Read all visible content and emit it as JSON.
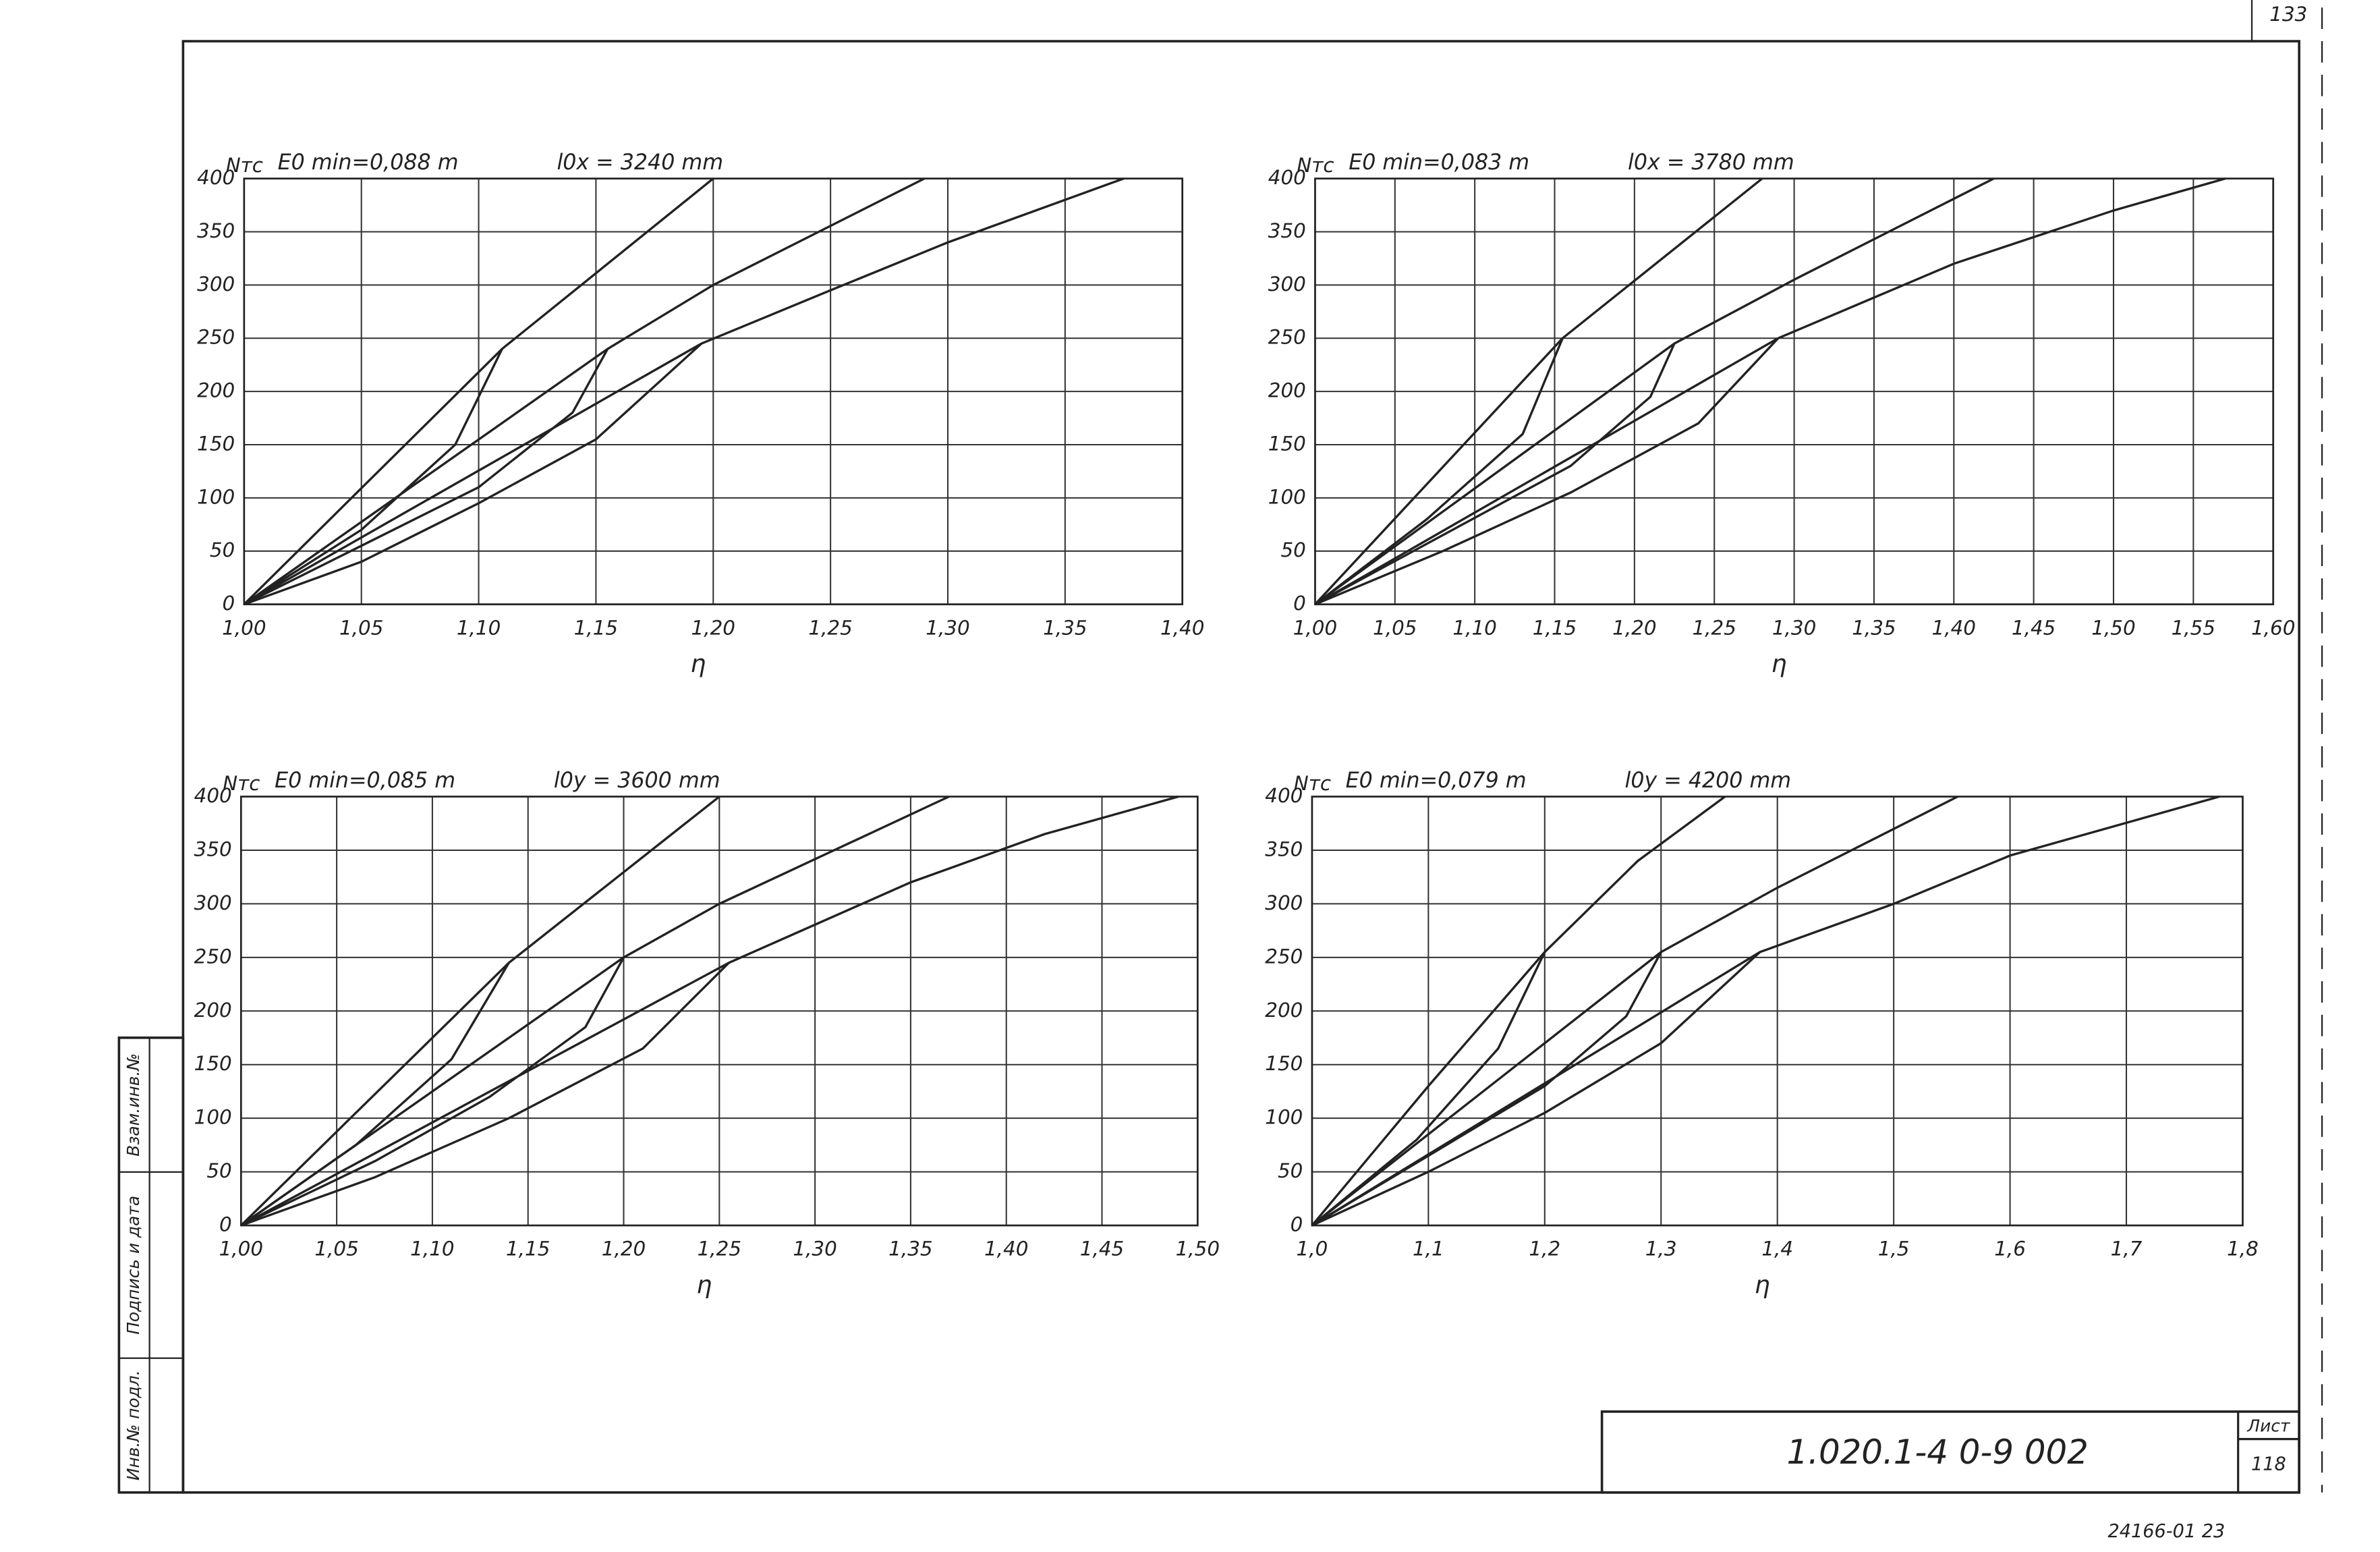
{
  "page_number": "133",
  "chart_data": [
    {
      "type": "line",
      "ylabel": "Nтс",
      "title": "E0 min=0,088 m",
      "subtitle": "l0x = 3240 mm",
      "xlabel": "η",
      "grid": true,
      "xlim": [
        1,
        1.4
      ],
      "ylim": [
        0,
        400
      ],
      "xticks": [
        {
          "value": 1,
          "label": "1,00"
        },
        {
          "value": 1.05,
          "label": "1,05"
        },
        {
          "value": 1.1,
          "label": "1,10"
        },
        {
          "value": 1.15,
          "label": "1,15"
        },
        {
          "value": 1.2,
          "label": "1,20"
        },
        {
          "value": 1.25,
          "label": "1,25"
        },
        {
          "value": 1.3,
          "label": "1,30"
        },
        {
          "value": 1.35,
          "label": "1,35"
        },
        {
          "value": 1.4,
          "label": "1,40"
        }
      ],
      "yticks": [
        0,
        50,
        100,
        150,
        200,
        250,
        300,
        350,
        400
      ],
      "series": [
        {
          "color": "#222",
          "x": [
            1,
            1.11,
            1.2
          ],
          "values": [
            0,
            240,
            400
          ]
        },
        {
          "color": "#222",
          "x": [
            1,
            1.05,
            1.09,
            1.11
          ],
          "values": [
            0,
            70,
            150,
            240
          ]
        },
        {
          "color": "#222",
          "x": [
            1,
            1.155,
            1.2,
            1.29
          ],
          "values": [
            0,
            240,
            300,
            400
          ]
        },
        {
          "color": "#222",
          "x": [
            1,
            1.05,
            1.1,
            1.14,
            1.155
          ],
          "values": [
            0,
            55,
            110,
            180,
            240
          ]
        },
        {
          "color": "#222",
          "x": [
            1,
            1.195,
            1.25,
            1.3,
            1.375
          ],
          "values": [
            0,
            245,
            295,
            340,
            400
          ]
        },
        {
          "color": "#222",
          "x": [
            1,
            1.05,
            1.1,
            1.15,
            1.195
          ],
          "values": [
            0,
            40,
            95,
            155,
            245
          ]
        }
      ]
    },
    {
      "type": "line",
      "ylabel": "Nтс",
      "title": "E0 min=0,083 m",
      "subtitle": "l0x = 3780 mm",
      "xlabel": "η",
      "grid": true,
      "xlim": [
        1,
        1.6
      ],
      "ylim": [
        0,
        400
      ],
      "xticks": [
        {
          "value": 1,
          "label": "1,00"
        },
        {
          "value": 1.05,
          "label": "1,05"
        },
        {
          "value": 1.1,
          "label": "1,10"
        },
        {
          "value": 1.15,
          "label": "1,15"
        },
        {
          "value": 1.2,
          "label": "1,20"
        },
        {
          "value": 1.25,
          "label": "1,25"
        },
        {
          "value": 1.3,
          "label": "1,30"
        },
        {
          "value": 1.35,
          "label": "1,35"
        },
        {
          "value": 1.4,
          "label": "1,40"
        },
        {
          "value": 1.45,
          "label": "1,45"
        },
        {
          "value": 1.5,
          "label": "1,50"
        },
        {
          "value": 1.55,
          "label": "1,55"
        },
        {
          "value": 1.6,
          "label": "1,60"
        }
      ],
      "yticks": [
        0,
        50,
        100,
        150,
        200,
        250,
        300,
        350,
        400
      ],
      "series": [
        {
          "color": "#222",
          "x": [
            1,
            1.155,
            1.28
          ],
          "values": [
            0,
            250,
            400
          ]
        },
        {
          "color": "#222",
          "x": [
            1,
            1.07,
            1.13,
            1.155
          ],
          "values": [
            0,
            80,
            160,
            250
          ]
        },
        {
          "color": "#222",
          "x": [
            1,
            1.225,
            1.3,
            1.425
          ],
          "values": [
            0,
            245,
            305,
            400
          ]
        },
        {
          "color": "#222",
          "x": [
            1,
            1.08,
            1.16,
            1.21,
            1.225
          ],
          "values": [
            0,
            65,
            130,
            195,
            245
          ]
        },
        {
          "color": "#222",
          "x": [
            1,
            1.29,
            1.4,
            1.5,
            1.57
          ],
          "values": [
            0,
            250,
            320,
            370,
            400
          ]
        },
        {
          "color": "#222",
          "x": [
            1,
            1.08,
            1.16,
            1.24,
            1.29
          ],
          "values": [
            0,
            50,
            105,
            170,
            250
          ]
        }
      ]
    },
    {
      "type": "line",
      "ylabel": "Nтс",
      "title": "E0 min=0,085 m",
      "subtitle": "l0y = 3600 mm",
      "xlabel": "η",
      "grid": true,
      "xlim": [
        1,
        1.5
      ],
      "ylim": [
        0,
        400
      ],
      "xticks": [
        {
          "value": 1,
          "label": "1,00"
        },
        {
          "value": 1.05,
          "label": "1,05"
        },
        {
          "value": 1.1,
          "label": "1,10"
        },
        {
          "value": 1.15,
          "label": "1,15"
        },
        {
          "value": 1.2,
          "label": "1,20"
        },
        {
          "value": 1.25,
          "label": "1,25"
        },
        {
          "value": 1.3,
          "label": "1,30"
        },
        {
          "value": 1.35,
          "label": "1,35"
        },
        {
          "value": 1.4,
          "label": "1,40"
        },
        {
          "value": 1.45,
          "label": "1,45"
        },
        {
          "value": 1.5,
          "label": "1,50"
        }
      ],
      "yticks": [
        0,
        50,
        100,
        150,
        200,
        250,
        300,
        350,
        400
      ],
      "series": [
        {
          "color": "#222",
          "x": [
            1,
            1.14,
            1.25
          ],
          "values": [
            0,
            245,
            400
          ]
        },
        {
          "color": "#222",
          "x": [
            1,
            1.06,
            1.11,
            1.14
          ],
          "values": [
            0,
            75,
            155,
            245
          ]
        },
        {
          "color": "#222",
          "x": [
            1,
            1.2,
            1.25,
            1.37
          ],
          "values": [
            0,
            250,
            300,
            400
          ]
        },
        {
          "color": "#222",
          "x": [
            1,
            1.07,
            1.13,
            1.18,
            1.2
          ],
          "values": [
            0,
            60,
            120,
            185,
            250
          ]
        },
        {
          "color": "#222",
          "x": [
            1,
            1.255,
            1.35,
            1.42,
            1.49
          ],
          "values": [
            0,
            245,
            320,
            365,
            400
          ]
        },
        {
          "color": "#222",
          "x": [
            1,
            1.07,
            1.14,
            1.21,
            1.255
          ],
          "values": [
            0,
            45,
            100,
            165,
            245
          ]
        }
      ]
    },
    {
      "type": "line",
      "ylabel": "Nтс",
      "title": "E0 min=0,079 m",
      "subtitle": "l0y = 4200 mm",
      "xlabel": "η",
      "grid": true,
      "xlim": [
        1,
        1.8
      ],
      "ylim": [
        0,
        400
      ],
      "xticks": [
        {
          "value": 1,
          "label": "1,0"
        },
        {
          "value": 1.1,
          "label": "1,1"
        },
        {
          "value": 1.2,
          "label": "1,2"
        },
        {
          "value": 1.3,
          "label": "1,3"
        },
        {
          "value": 1.4,
          "label": "1,4"
        },
        {
          "value": 1.5,
          "label": "1,5"
        },
        {
          "value": 1.6,
          "label": "1,6"
        },
        {
          "value": 1.7,
          "label": "1,7"
        },
        {
          "value": 1.8,
          "label": "1,8"
        }
      ],
      "yticks": [
        0,
        50,
        100,
        150,
        200,
        250,
        300,
        350,
        400
      ],
      "series": [
        {
          "color": "#222",
          "x": [
            1,
            1.1,
            1.2,
            1.28,
            1.355
          ],
          "values": [
            0,
            130,
            255,
            340,
            400
          ]
        },
        {
          "color": "#222",
          "x": [
            1,
            1.09,
            1.16,
            1.2
          ],
          "values": [
            0,
            80,
            165,
            255
          ]
        },
        {
          "color": "#222",
          "x": [
            1,
            1.3,
            1.4,
            1.555
          ],
          "values": [
            0,
            255,
            315,
            400
          ]
        },
        {
          "color": "#222",
          "x": [
            1,
            1.1,
            1.2,
            1.27,
            1.3
          ],
          "values": [
            0,
            65,
            130,
            195,
            255
          ]
        },
        {
          "color": "#222",
          "x": [
            1,
            1.385,
            1.5,
            1.6,
            1.78
          ],
          "values": [
            0,
            255,
            300,
            345,
            400
          ]
        },
        {
          "color": "#222",
          "x": [
            1,
            1.1,
            1.2,
            1.3,
            1.385
          ],
          "values": [
            0,
            50,
            105,
            170,
            255
          ]
        }
      ]
    }
  ],
  "stamp": {
    "code": "1.020.1-4   0-9   002",
    "sheet_label": "Лист",
    "sheet": "118"
  },
  "side_stamp": [
    "Инв.№ подл.",
    "Подпись и дата",
    "Взам.инв.№"
  ],
  "footer": "24166-01  23"
}
